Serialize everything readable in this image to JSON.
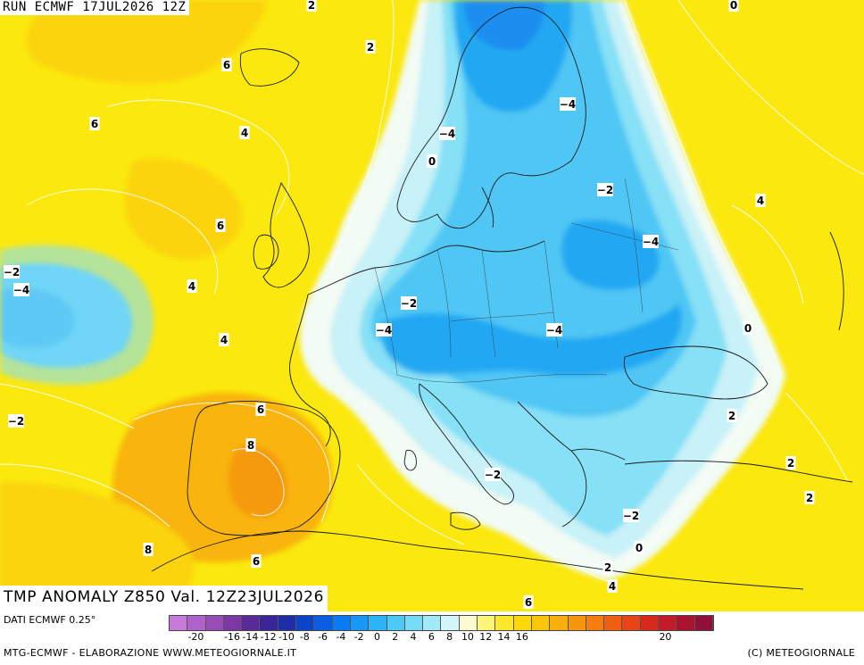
{
  "header": {
    "run_label": "RUN ECMWF 17JUL2026 12Z"
  },
  "title": {
    "text": "TMP ANOMALY Z850 Val. 12Z23JUL2026"
  },
  "footer": {
    "source": "DATI ECMWF 0.25°",
    "credit": "MTG-ECMWF - ELABORAZIONE WWW.METEOGIORNALE.IT",
    "copyright": "(C) METEOGIORNALE"
  },
  "legend": {
    "colors": [
      "#c87ad8",
      "#b062c8",
      "#9a4cb6",
      "#7e38a6",
      "#5a2a9a",
      "#3a249a",
      "#1e2ea8",
      "#0b44c4",
      "#0a5ee0",
      "#0a7cf2",
      "#1898f6",
      "#2eb2f8",
      "#4ccaf6",
      "#74dcf6",
      "#a2eaf8",
      "#d2f6fa",
      "#fdfbd0",
      "#fcf47a",
      "#fbe82a",
      "#fbd80a",
      "#fbc60a",
      "#f9b00c",
      "#f7960e",
      "#f47c10",
      "#f06012",
      "#e84416",
      "#d82a1c",
      "#c21c28",
      "#a81430",
      "#90103a"
    ],
    "ticks": [
      "-20",
      "-16",
      "-14",
      "-12",
      "-10",
      "-8",
      "-6",
      "-4",
      "-2",
      "0",
      "2",
      "4",
      "6",
      "8",
      "10",
      "12",
      "14",
      "16",
      "20"
    ]
  },
  "map": {
    "palette": {
      "ocean_low": "#f6ea2e",
      "yellow": "#fbe80e",
      "yellow_orange": "#fbd40a",
      "orange": "#f8b20c",
      "deep_orange": "#f59a0e",
      "pale": "#f2fbf4",
      "light_cyan": "#c8f1f8",
      "cyan": "#86e0f6",
      "sky": "#4fc6f4",
      "blue": "#23a8f2",
      "deep_blue": "#1b8ef0"
    },
    "contour_labels": [
      {
        "text": "2",
        "id": "c1"
      },
      {
        "text": "0",
        "id": "c2"
      },
      {
        "text": "6",
        "id": "c3"
      },
      {
        "text": "2",
        "id": "c4"
      },
      {
        "text": "6",
        "id": "c5"
      },
      {
        "text": "4",
        "id": "c6"
      },
      {
        "text": "-4",
        "id": "c7"
      },
      {
        "text": "-4",
        "id": "c8"
      },
      {
        "text": "0",
        "id": "c9"
      },
      {
        "text": "-2",
        "id": "c10"
      },
      {
        "text": "4",
        "id": "c11"
      },
      {
        "text": "6",
        "id": "c12"
      },
      {
        "text": "-4",
        "id": "c13"
      },
      {
        "text": "-2",
        "id": "c14"
      },
      {
        "text": "-4",
        "id": "c15"
      },
      {
        "text": "4",
        "id": "c16"
      },
      {
        "text": "-2",
        "id": "c17"
      },
      {
        "text": "4",
        "id": "c18"
      },
      {
        "text": "-4",
        "id": "c19"
      },
      {
        "text": "-4",
        "id": "c20"
      },
      {
        "text": "0",
        "id": "c21"
      },
      {
        "text": "-2",
        "id": "c22"
      },
      {
        "text": "6",
        "id": "c23"
      },
      {
        "text": "2",
        "id": "c24"
      },
      {
        "text": "8",
        "id": "c25"
      },
      {
        "text": "-2",
        "id": "c26"
      },
      {
        "text": "2",
        "id": "c27"
      },
      {
        "text": "2",
        "id": "c28"
      },
      {
        "text": "8",
        "id": "c29"
      },
      {
        "text": "-2",
        "id": "c30"
      },
      {
        "text": "6",
        "id": "c31"
      },
      {
        "text": "0",
        "id": "c32"
      },
      {
        "text": "2",
        "id": "c33"
      },
      {
        "text": "4",
        "id": "c34"
      },
      {
        "text": "6",
        "id": "c35"
      }
    ]
  }
}
